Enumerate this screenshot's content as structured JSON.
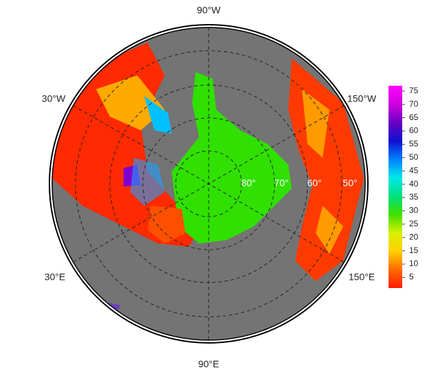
{
  "chart_data": {
    "type": "polar-map",
    "lon_labels": [
      "90°W",
      "30°W",
      "150°W",
      "30°E",
      "150°E",
      "90°E"
    ],
    "lat_labels": [
      "80°",
      "70°",
      "60°",
      "50°"
    ],
    "colorbar": {
      "clim": [
        1,
        77
      ],
      "ticks": [
        5,
        10,
        15,
        20,
        25,
        30,
        35,
        40,
        45,
        50,
        55,
        60,
        65,
        70,
        75
      ],
      "colors": [
        "#ff1a00",
        "#ff6a00",
        "#ffd000",
        "#d8f000",
        "#40e000",
        "#00e080",
        "#00e8e8",
        "#0080ff",
        "#1010d0",
        "#6a00c0",
        "#d000e0",
        "#ff00ff"
      ]
    }
  }
}
